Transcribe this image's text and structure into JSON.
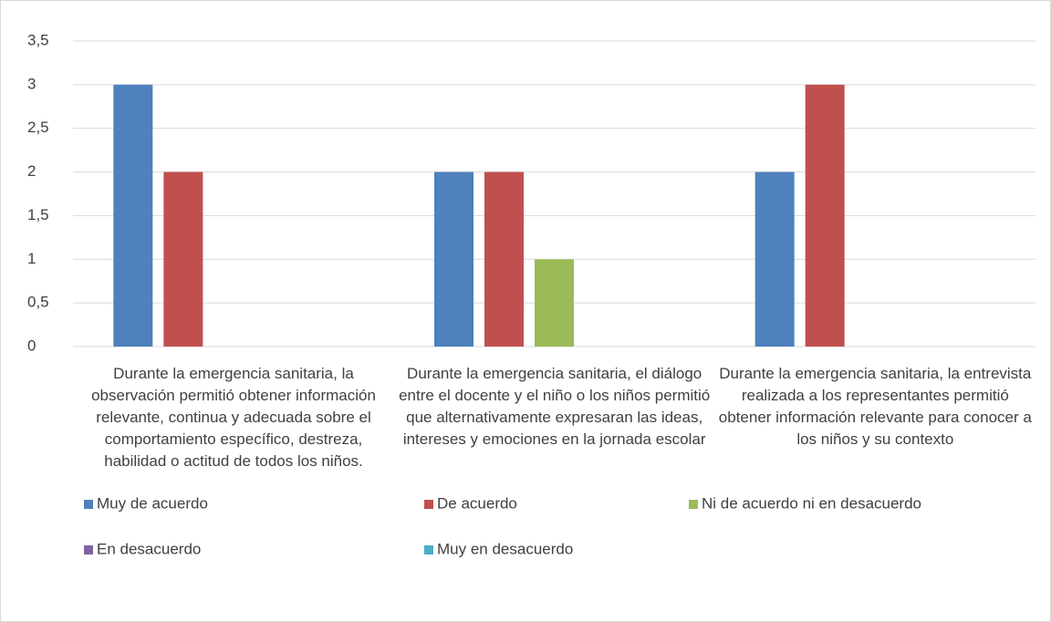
{
  "chart_data": {
    "type": "bar",
    "categories": [
      "Durante la emergencia sanitaria, la observación permitió obtener información relevante, continua y adecuada sobre el comportamiento específico, destreza, habilidad o actitud de todos los niños.",
      "Durante la emergencia sanitaria, el diálogo entre el docente y el niño o los niños permitió que alternativamente expresaran las ideas, intereses y emociones en la jornada escolar",
      "Durante la emergencia sanitaria, la entrevista realizada a los representantes permitió obtener información relevante para conocer a los niños y su contexto"
    ],
    "series": [
      {
        "name": "Muy de acuerdo",
        "color": "#4f81bd",
        "values": [
          3,
          2,
          2
        ]
      },
      {
        "name": "De acuerdo",
        "color": "#c0504d",
        "values": [
          2,
          2,
          3
        ]
      },
      {
        "name": "Ni de acuerdo ni en desacuerdo",
        "color": "#9bbb59",
        "values": [
          0,
          1,
          0
        ]
      },
      {
        "name": "En desacuerdo",
        "color": "#8064a2",
        "values": [
          0,
          0,
          0
        ]
      },
      {
        "name": "Muy en desacuerdo",
        "color": "#4bacc6",
        "values": [
          0,
          0,
          0
        ]
      }
    ],
    "ylim": [
      0,
      3.5
    ],
    "yticks": [
      0,
      {
        "value": 0.5,
        "label": "0,5"
      },
      1,
      {
        "value": 1.5,
        "label": "1,5"
      },
      2,
      {
        "value": 2.5,
        "label": "2,5"
      },
      3,
      {
        "value": 3.5,
        "label": "3,5"
      }
    ],
    "grid": true,
    "legend": "bottom"
  }
}
